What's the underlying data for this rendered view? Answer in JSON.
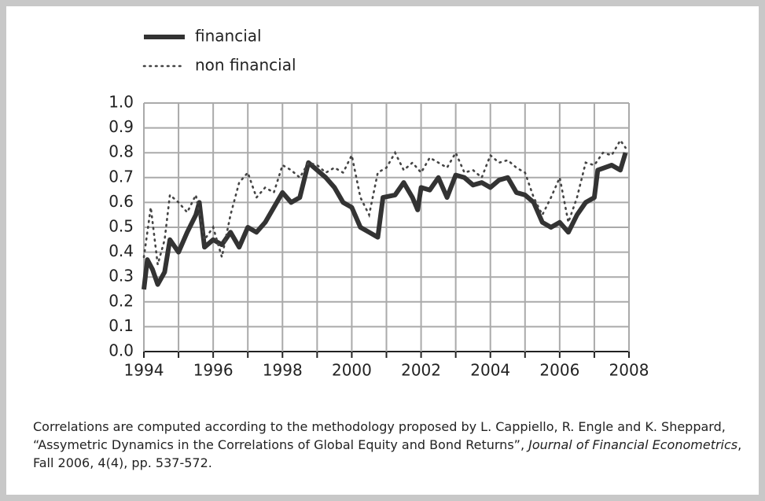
{
  "chart_data": {
    "type": "line",
    "caption": [
      "Correlations are computed according to the methodology proposed by L. Cappiello, R. Engle and K. Sheppard, “Assymetric Dynamics in the Correlations of Global Equity and Bond Returns”, ",
      "Journal of Financial Econometrics",
      ", Fall 2006, 4(4), pp. 537-572."
    ],
    "series": [
      {
        "name": "financial",
        "color": "#333333",
        "style": "solid",
        "x": [
          1994.0,
          1994.1,
          1994.25,
          1994.4,
          1994.6,
          1994.75,
          1995.0,
          1995.25,
          1995.5,
          1995.6,
          1995.75,
          1996.0,
          1996.25,
          1996.5,
          1996.75,
          1997.0,
          1997.25,
          1997.5,
          1997.75,
          1998.0,
          1998.25,
          1998.5,
          1998.75,
          1999.0,
          1999.25,
          1999.5,
          1999.75,
          2000.0,
          2000.25,
          2000.5,
          2000.75,
          2000.9,
          2001.25,
          2001.5,
          2001.75,
          2001.9,
          2002.0,
          2002.25,
          2002.5,
          2002.75,
          2003.0,
          2003.25,
          2003.5,
          2003.75,
          2004.0,
          2004.25,
          2004.5,
          2004.75,
          2005.0,
          2005.25,
          2005.5,
          2005.75,
          2006.0,
          2006.25,
          2006.5,
          2006.75,
          2007.0,
          2007.1,
          2007.5,
          2007.75,
          2007.9
        ],
        "values": [
          0.25,
          0.37,
          0.33,
          0.27,
          0.32,
          0.45,
          0.4,
          0.48,
          0.55,
          0.6,
          0.42,
          0.45,
          0.43,
          0.48,
          0.42,
          0.5,
          0.48,
          0.52,
          0.58,
          0.64,
          0.6,
          0.62,
          0.76,
          0.73,
          0.7,
          0.66,
          0.6,
          0.58,
          0.5,
          0.48,
          0.46,
          0.62,
          0.63,
          0.68,
          0.62,
          0.57,
          0.66,
          0.65,
          0.7,
          0.62,
          0.71,
          0.7,
          0.67,
          0.68,
          0.66,
          0.69,
          0.7,
          0.64,
          0.63,
          0.6,
          0.52,
          0.5,
          0.52,
          0.48,
          0.55,
          0.6,
          0.62,
          0.73,
          0.75,
          0.73,
          0.8
        ]
      },
      {
        "name": "non financial",
        "color": "#444444",
        "style": "dotted",
        "x": [
          1994.0,
          1994.2,
          1994.4,
          1994.6,
          1994.75,
          1995.0,
          1995.25,
          1995.5,
          1995.75,
          1996.0,
          1996.25,
          1996.5,
          1996.75,
          1997.0,
          1997.25,
          1997.5,
          1997.75,
          1998.0,
          1998.25,
          1998.5,
          1998.75,
          1999.0,
          1999.25,
          1999.5,
          1999.75,
          2000.0,
          2000.25,
          2000.5,
          2000.75,
          2001.0,
          2001.25,
          2001.5,
          2001.75,
          2002.0,
          2002.25,
          2002.5,
          2002.75,
          2003.0,
          2003.25,
          2003.5,
          2003.75,
          2004.0,
          2004.25,
          2004.5,
          2004.75,
          2005.0,
          2005.25,
          2005.5,
          2005.75,
          2006.0,
          2006.25,
          2006.5,
          2006.75,
          2007.0,
          2007.25,
          2007.5,
          2007.75,
          2007.9
        ],
        "values": [
          0.38,
          0.58,
          0.35,
          0.45,
          0.63,
          0.6,
          0.56,
          0.63,
          0.45,
          0.5,
          0.38,
          0.55,
          0.68,
          0.72,
          0.62,
          0.66,
          0.64,
          0.75,
          0.73,
          0.7,
          0.76,
          0.75,
          0.72,
          0.74,
          0.72,
          0.79,
          0.62,
          0.55,
          0.72,
          0.74,
          0.8,
          0.73,
          0.76,
          0.72,
          0.78,
          0.76,
          0.74,
          0.8,
          0.72,
          0.73,
          0.7,
          0.79,
          0.76,
          0.77,
          0.74,
          0.72,
          0.62,
          0.55,
          0.62,
          0.7,
          0.52,
          0.62,
          0.76,
          0.75,
          0.8,
          0.79,
          0.85,
          0.82
        ]
      }
    ],
    "xlim": [
      1994,
      2008
    ],
    "xticks": [
      1994,
      1996,
      1998,
      2000,
      2002,
      2004,
      2006,
      2008
    ],
    "xminor": [
      1995,
      1997,
      1999,
      2001,
      2003,
      2005,
      2007
    ],
    "ylim": [
      0,
      1
    ],
    "yticks": [
      {
        "value": 0,
        "label": "0.0"
      },
      0.1,
      0.2,
      0.3,
      0.4,
      0.5,
      0.6,
      0.7,
      0.8,
      0.9,
      {
        "value": 1,
        "label": "1.0"
      }
    ],
    "grid": true
  }
}
